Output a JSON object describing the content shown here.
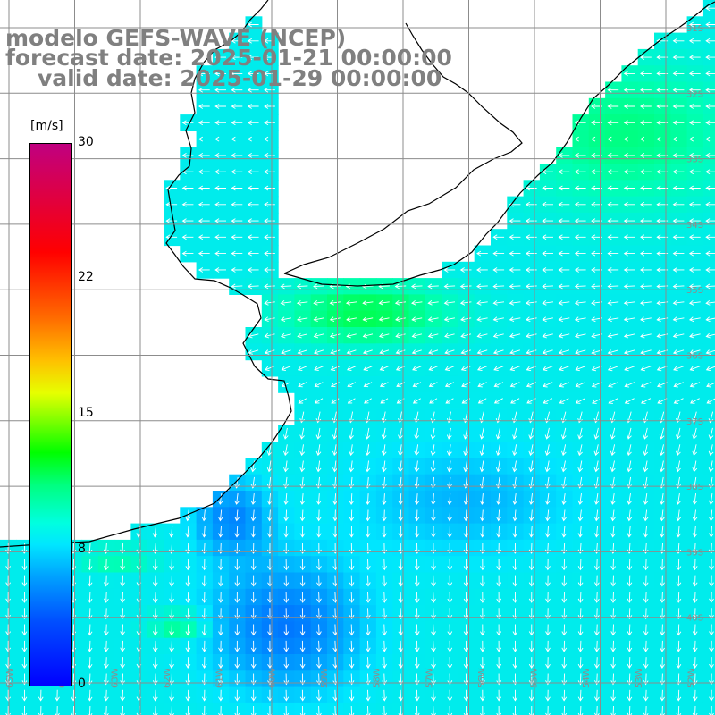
{
  "title": {
    "line1": "modelo GEFS-WAVE (NCEP)",
    "line2": "forecast date: 2025-01-21 00:00:00",
    "line3": "valid date: 2025-01-29 00:00:00"
  },
  "colorbar": {
    "unit": "[m/s]",
    "ticks": [
      "30",
      "22",
      "15",
      "8",
      "0"
    ],
    "tick_values": [
      30,
      22,
      15,
      8,
      0
    ],
    "range": [
      0,
      30
    ]
  },
  "map": {
    "lat_labels": [
      "31S",
      "32S",
      "33S",
      "34S",
      "35S",
      "36S",
      "37S",
      "38S",
      "39S",
      "40S"
    ],
    "lat_values": [
      -31,
      -32,
      -33,
      -34,
      -35,
      -36,
      -37,
      -38,
      -39,
      -40
    ],
    "lon_labels": [
      "65W",
      "64W",
      "63W",
      "62W",
      "61W",
      "60W",
      "59W",
      "58W",
      "57W",
      "56W",
      "55W",
      "54W",
      "53W",
      "52W"
    ],
    "lon_values": [
      -65,
      -64,
      -63,
      -62,
      -61,
      -60,
      -59,
      -58,
      -57,
      -56,
      -55,
      -54,
      -53,
      -52
    ],
    "land_color": "#ffffff",
    "grid_color": "#8c8c8c",
    "variable": "wind speed and direction"
  }
}
